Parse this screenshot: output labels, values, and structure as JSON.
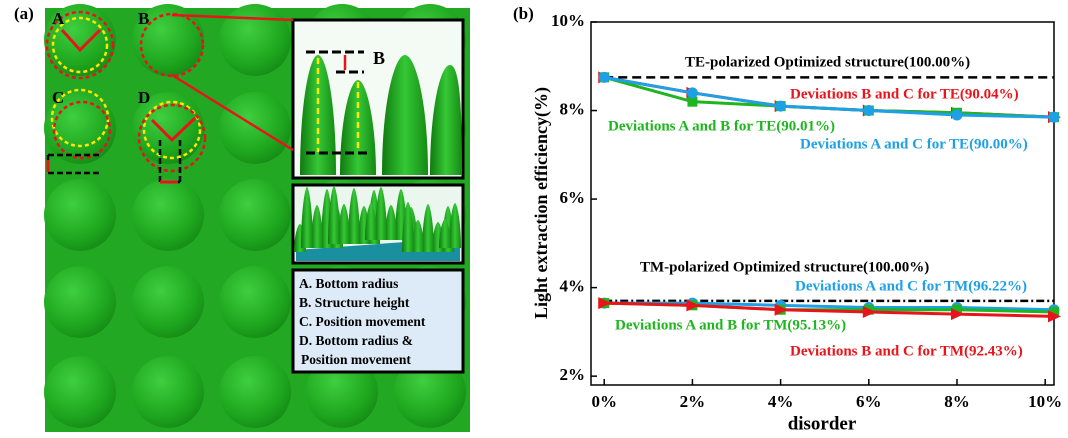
{
  "panel_a": {
    "label": "(a)",
    "markers": [
      "A",
      "B",
      "C",
      "D"
    ],
    "inset_label": "B",
    "legend": [
      "A. Bottom radius",
      "B. Structure height",
      "C. Position movement",
      "D. Bottom radius &",
      "Position movement"
    ]
  },
  "chart_data": {
    "type": "line",
    "panel_label": "(b)",
    "x_label": "disorder",
    "y_label": "Light extraction efficiency(%)",
    "x": [
      0,
      2,
      4,
      6,
      8,
      10.2
    ],
    "xlim": [
      -0.3,
      10.2
    ],
    "ylim": [
      1.8,
      10
    ],
    "xticks": [
      {
        "value": 0,
        "label": "0%"
      },
      {
        "value": 2,
        "label": "2%"
      },
      {
        "value": 4,
        "label": "4%"
      },
      {
        "value": 6,
        "label": "6%"
      },
      {
        "value": 8,
        "label": "8%"
      },
      {
        "value": 10,
        "label": "10%"
      }
    ],
    "yticks": [
      {
        "value": 2,
        "label": "2%"
      },
      {
        "value": 4,
        "label": "4%"
      },
      {
        "value": 6,
        "label": "6%"
      },
      {
        "value": 8,
        "label": "8%"
      },
      {
        "value": 10,
        "label": "10%"
      }
    ],
    "series": [
      {
        "name": "TE-polarized Optimized structure(100.00%)",
        "color": "#000000",
        "dash": "9,5",
        "values": [
          8.75,
          8.75,
          8.75,
          8.75,
          8.75,
          8.75
        ]
      },
      {
        "name": "Deviations B and C for TE(90.04%)",
        "color": "#e8141b",
        "marker": "triangle",
        "values": [
          8.75,
          8.4,
          8.1,
          8.0,
          7.95,
          7.85
        ]
      },
      {
        "name": "Deviations A and B for TE(90.01%)",
        "color": "#1fb51f",
        "marker": "square",
        "values": [
          8.75,
          8.2,
          8.1,
          8.0,
          7.95,
          7.85
        ]
      },
      {
        "name": "Deviations A and C for TE(90.00%)",
        "color": "#1ea0e6",
        "marker": "circle",
        "values": [
          8.75,
          8.4,
          8.1,
          8.0,
          7.9,
          7.85
        ]
      },
      {
        "name": "TM-polarized Optimized structure(100.00%)",
        "color": "#000000",
        "dash": "8,3,2,3",
        "values": [
          3.7,
          3.7,
          3.7,
          3.7,
          3.7,
          3.7
        ]
      },
      {
        "name": "Deviations A and C for TM(96.22%)",
        "color": "#1ea0e6",
        "marker": "circle",
        "values": [
          3.65,
          3.65,
          3.6,
          3.55,
          3.55,
          3.5
        ]
      },
      {
        "name": "Deviations A and B for TM(95.13%)",
        "color": "#1fb51f",
        "marker": "square",
        "values": [
          3.65,
          3.6,
          3.5,
          3.5,
          3.5,
          3.45
        ]
      },
      {
        "name": "Deviations B and C for TM(92.43%)",
        "color": "#e8141b",
        "marker": "triangle",
        "values": [
          3.65,
          3.6,
          3.5,
          3.45,
          3.4,
          3.35
        ]
      }
    ]
  }
}
